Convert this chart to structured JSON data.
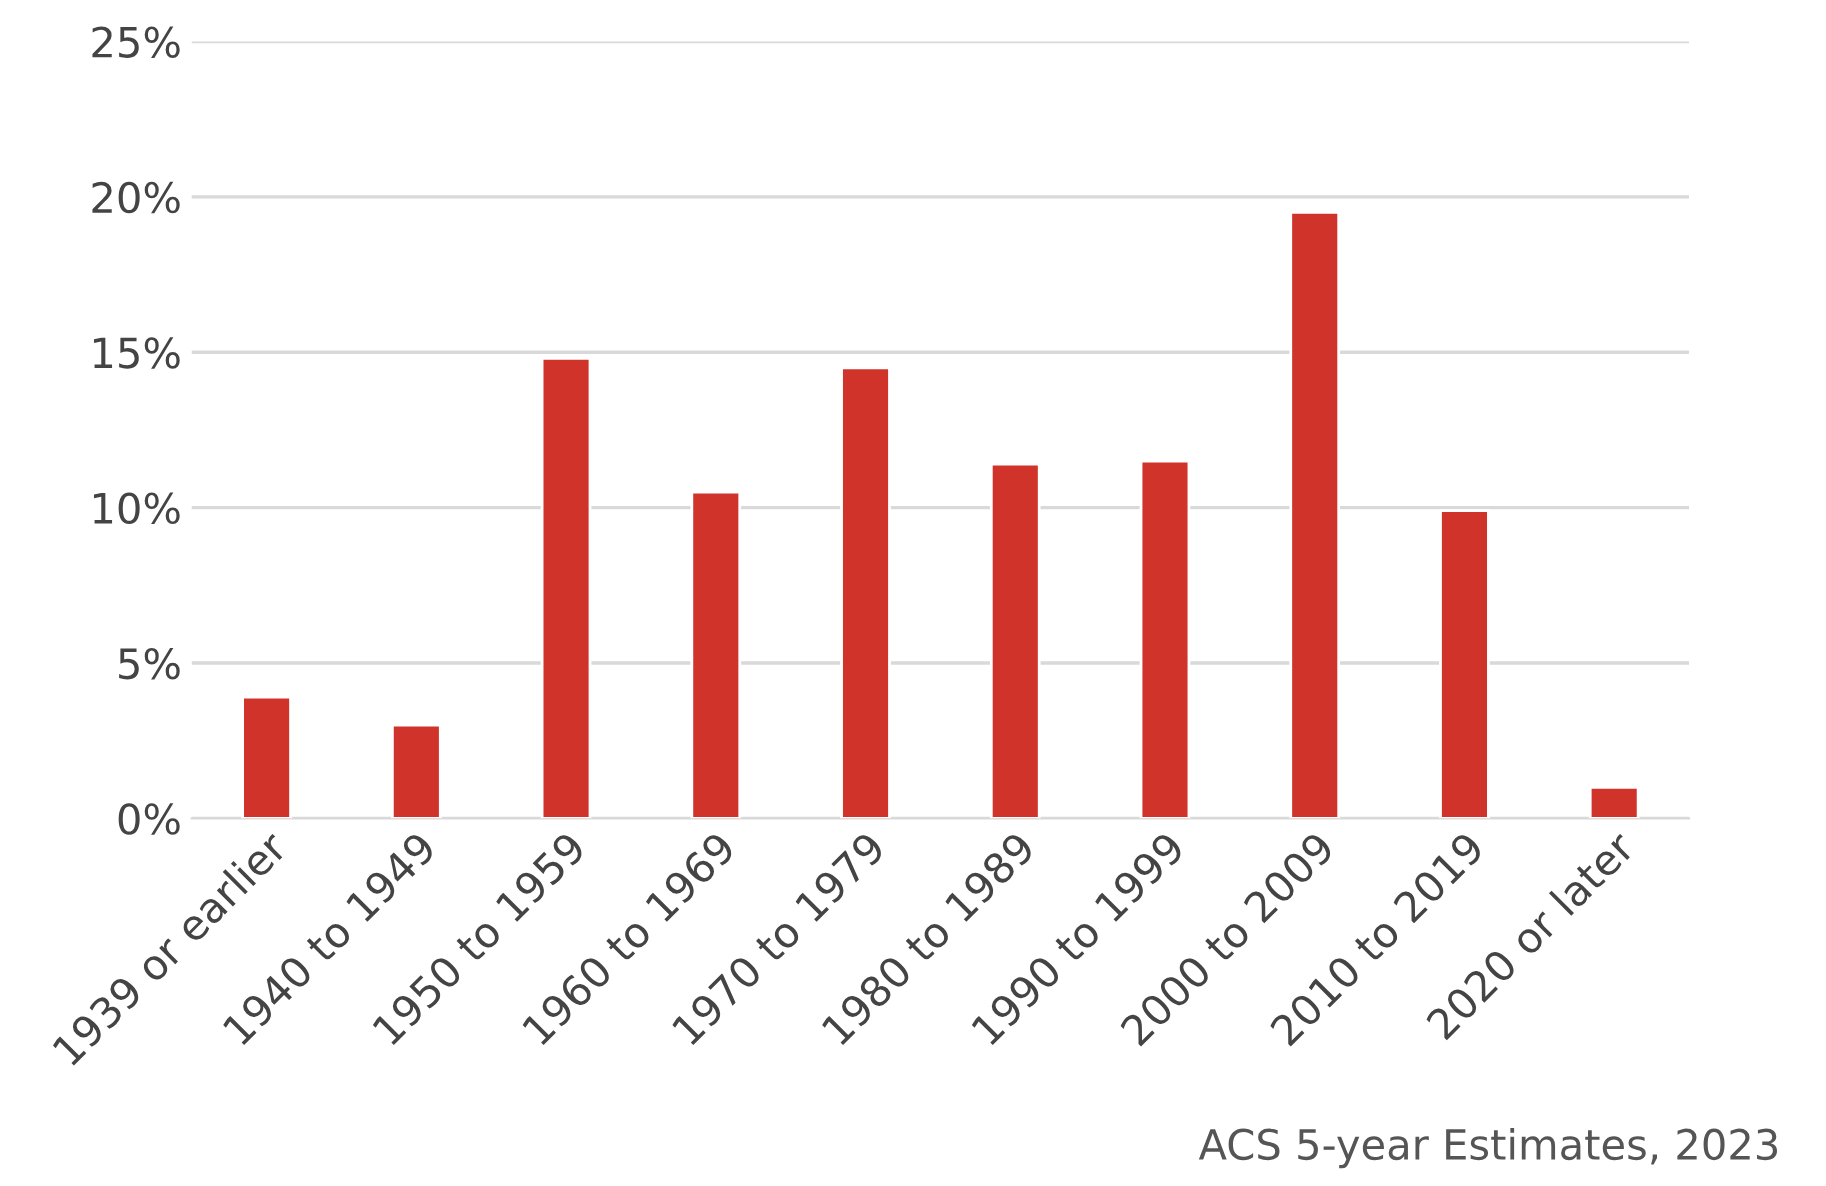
{
  "chart_data": {
    "type": "bar",
    "categories": [
      "1939 or earlier",
      "1940 to 1949",
      "1950 to 1959",
      "1960 to 1969",
      "1970 to 1979",
      "1980 to 1989",
      "1990 to 1999",
      "2000 to 2009",
      "2010 to 2019",
      "2020 or later"
    ],
    "values": [
      3.9,
      3.0,
      14.8,
      10.5,
      14.5,
      11.4,
      11.5,
      19.5,
      9.9,
      1.0
    ],
    "color": "#d0332a",
    "ylim": [
      0,
      25
    ],
    "yticks": [
      {
        "value": 0,
        "label": "0%"
      },
      {
        "value": 5,
        "label": "5%"
      },
      {
        "value": 10,
        "label": "10%"
      },
      {
        "value": 15,
        "label": "15%"
      },
      {
        "value": 20,
        "label": "20%"
      },
      {
        "value": 25,
        "label": "25%"
      }
    ],
    "grid": "y",
    "annotations": [
      "ACS 5-year Estimates, 2023"
    ]
  }
}
